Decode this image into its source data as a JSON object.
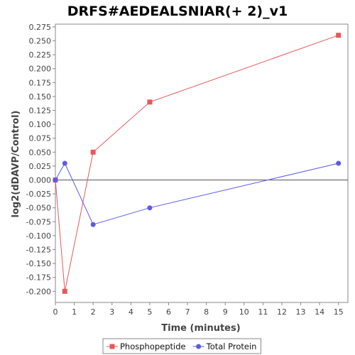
{
  "chart_data": {
    "type": "line",
    "title": "DRFS#AEDEALSNIAR(+ 2)_v1",
    "xlabel": "Time (minutes)",
    "ylabel": "log2(dDAVP/Control)",
    "xlim": [
      0,
      15.5
    ],
    "ylim": [
      -0.22,
      0.28
    ],
    "x_ticks": [
      "0",
      "1",
      "2",
      "3",
      "4",
      "5",
      "6",
      "7",
      "8",
      "9",
      "10",
      "11",
      "12",
      "13",
      "14",
      "15"
    ],
    "y_ticks": [
      "0.275",
      "0.250",
      "0.225",
      "0.200",
      "0.175",
      "0.150",
      "0.125",
      "0.100",
      "0.075",
      "0.050",
      "0.025",
      "0.000",
      "-0.025",
      "-0.050",
      "-0.075",
      "-0.100",
      "-0.125",
      "-0.150",
      "-0.175",
      "-0.200"
    ],
    "reference_line_y": 0,
    "grid": false,
    "legend_position": "bottom",
    "series": [
      {
        "name": "Phosphopeptide",
        "color": "#e8585a",
        "marker": "square",
        "x": [
          0,
          0.5,
          2,
          5,
          15
        ],
        "y": [
          0.0,
          -0.2,
          0.05,
          0.14,
          0.26
        ]
      },
      {
        "name": "Total Protein",
        "color": "#5b5be8",
        "marker": "circle",
        "x": [
          0,
          0.5,
          2,
          5,
          15
        ],
        "y": [
          0.0,
          0.03,
          -0.08,
          -0.05,
          0.03
        ]
      }
    ]
  }
}
